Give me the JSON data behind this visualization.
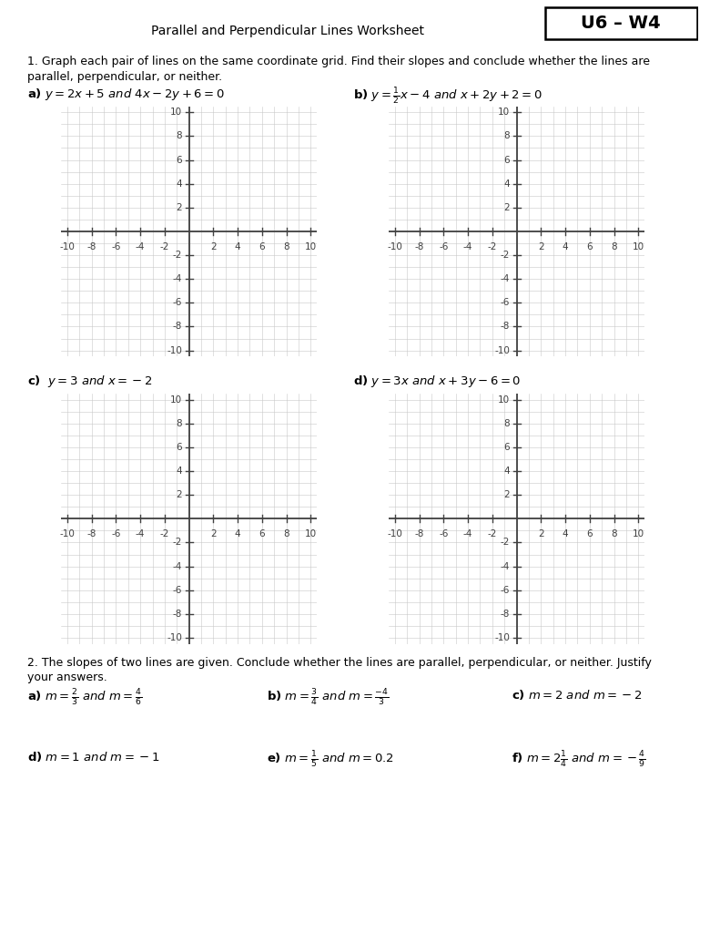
{
  "title": "Parallel and Perpendicular Lines Worksheet",
  "badge": "U6 – W4",
  "section1_line1": "1. Graph each pair of lines on the same coordinate grid. Find their slopes and conclude whether the lines are",
  "section1_line2": "parallel, perpendicular, or neither.",
  "section2_line1": "2. The slopes of two lines are given. Conclude whether the lines are parallel, perpendicular, or neither. Justify",
  "section2_line2": "your answers.",
  "grid_color": "#c8c8c8",
  "axis_color": "#404040",
  "bg_color": "#ffffff",
  "label_fontsize": 9.5,
  "tick_fontsize": 7.5,
  "grid_range": 10,
  "tick_step": 2
}
